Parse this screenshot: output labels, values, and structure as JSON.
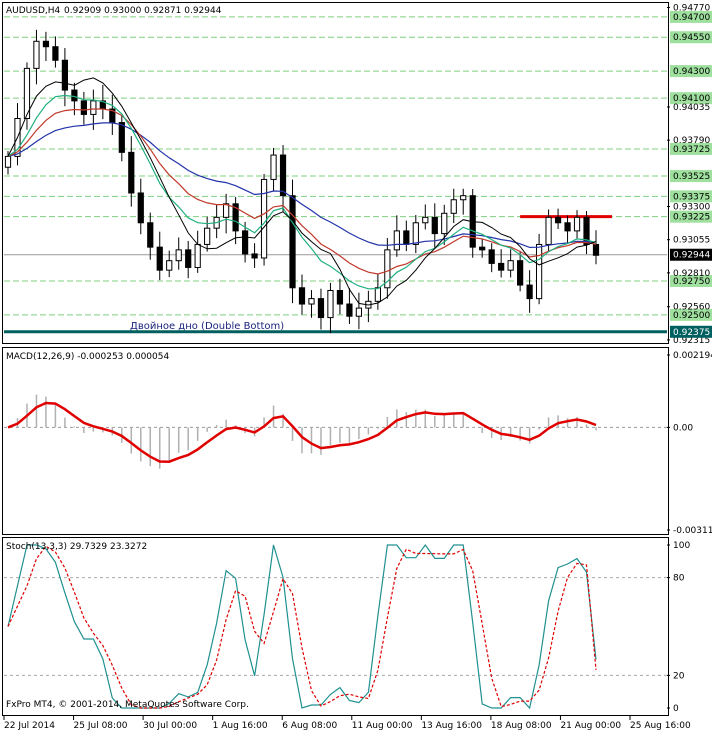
{
  "main_header": {
    "symbol_tf": "AUDUSD,H4",
    "ohlc": "0.92909 0.93000 0.92871 0.92944"
  },
  "annotation": {
    "pattern": "Двойное дно (Double Bottom)"
  },
  "macd_header": "MACD(12,26,9) -0.000253 0.000054",
  "stoch_header": "Stoch(13,3,3) 29.7329 23.3272",
  "copyright": "FxPro MT4, © 2001-2014, MetaQuotes Software Corp.",
  "colors": {
    "candles": "#000000",
    "ma_red": "#c0392b",
    "ma_blue": "#2233aa",
    "ma_green": "#20b080",
    "ma_black": "#000000",
    "grid_green": "#7fd07f",
    "support_line": "#006060",
    "resistance": "#e00000",
    "macd_signal": "#e00000",
    "macd_hist": "#b0b0b0",
    "stoch_main": "#209090",
    "stoch_signal": "#e00000",
    "current_price_bg": "#000000",
    "current_price_text": "#ffffff"
  },
  "chart_data": [
    {
      "type": "candlestick",
      "title": "AUDUSD,H4",
      "ylim": [
        0.92315,
        0.9477
      ],
      "price_axis_labels": [
        "0.94770",
        "0.94035",
        "0.93790",
        "0.93300",
        "0.93055",
        "0.92810",
        "0.92560",
        "0.92315"
      ],
      "green_level_labels": [
        "0.94700",
        "0.94550",
        "0.94300",
        "0.94100",
        "0.93725",
        "0.93525",
        "0.93375",
        "0.93225",
        "0.92750",
        "0.92500"
      ],
      "green_levels": [
        0.947,
        0.9455,
        0.943,
        0.941,
        0.93725,
        0.93525,
        0.93375,
        0.93225,
        0.9275,
        0.925
      ],
      "support_label": "0.92375",
      "support_level": 0.92375,
      "resistance_level": 0.93225,
      "current_price_label": "0.92944",
      "current_price": 0.92944,
      "x_labels": [
        "22 Jul 2014",
        "25 Jul 08:00",
        "30 Jul 00:00",
        "1 Aug 16:00",
        "6 Aug 08:00",
        "11 Aug 00:00",
        "13 Aug 16:00",
        "18 Aug 08:00",
        "21 Aug 00:00",
        "25 Aug 16:00"
      ],
      "close_series": [
        0.9367,
        0.9395,
        0.9432,
        0.9452,
        0.9448,
        0.9438,
        0.9416,
        0.9408,
        0.9398,
        0.9408,
        0.9402,
        0.9392,
        0.937,
        0.934,
        0.9318,
        0.93,
        0.9283,
        0.929,
        0.9298,
        0.9285,
        0.9302,
        0.9314,
        0.9322,
        0.9332,
        0.9312,
        0.9295,
        0.9292,
        0.935,
        0.9368,
        0.9338,
        0.927,
        0.9258,
        0.9262,
        0.9248,
        0.9268,
        0.9258,
        0.9249,
        0.9255,
        0.926,
        0.927,
        0.9298,
        0.9312,
        0.9302,
        0.9318,
        0.9322,
        0.931,
        0.9325,
        0.9335,
        0.9338,
        0.93,
        0.9298,
        0.9288,
        0.9283,
        0.929,
        0.9272,
        0.9262,
        0.9302,
        0.9322,
        0.9318,
        0.9312,
        0.9322,
        0.9302,
        0.9294
      ]
    },
    {
      "type": "line",
      "title": "MACD(12,26,9)",
      "axis_labels": [
        "0.002194",
        "0.00",
        "-0.00311"
      ],
      "ylim": [
        -0.00311,
        0.002194
      ]
    },
    {
      "type": "line",
      "title": "Stoch(13,3,3)",
      "axis_labels": [
        "100",
        "80",
        "20",
        "0"
      ],
      "ylim": [
        0,
        100
      ],
      "main_last": 29.7329,
      "signal_last": 23.3272
    }
  ]
}
